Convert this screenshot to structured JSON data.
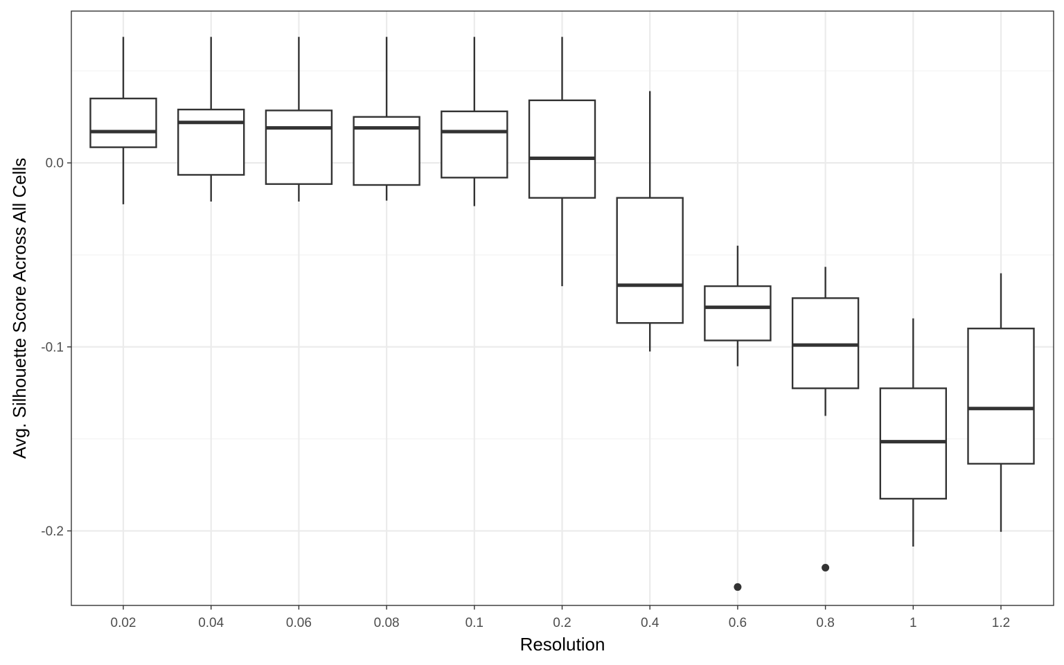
{
  "chart_data": {
    "type": "boxplot",
    "title": "",
    "xlabel": "Resolution",
    "ylabel": "Avg. Silhouette Score Across All Cells",
    "categories": [
      "0.02",
      "0.04",
      "0.06",
      "0.08",
      "0.1",
      "0.2",
      "0.4",
      "0.6",
      "0.8",
      "1",
      "1.2"
    ],
    "boxes": [
      {
        "category": "0.02",
        "whisker_low": -0.0225,
        "q1": 0.0085,
        "median": 0.017,
        "q3": 0.035,
        "whisker_high": 0.0685,
        "outliers": []
      },
      {
        "category": "0.04",
        "whisker_low": -0.021,
        "q1": -0.0065,
        "median": 0.022,
        "q3": 0.029,
        "whisker_high": 0.0685,
        "outliers": []
      },
      {
        "category": "0.06",
        "whisker_low": -0.021,
        "q1": -0.0115,
        "median": 0.019,
        "q3": 0.0285,
        "whisker_high": 0.0685,
        "outliers": []
      },
      {
        "category": "0.08",
        "whisker_low": -0.0205,
        "q1": -0.012,
        "median": 0.019,
        "q3": 0.025,
        "whisker_high": 0.0685,
        "outliers": []
      },
      {
        "category": "0.1",
        "whisker_low": -0.0235,
        "q1": -0.008,
        "median": 0.017,
        "q3": 0.028,
        "whisker_high": 0.0685,
        "outliers": []
      },
      {
        "category": "0.2",
        "whisker_low": -0.067,
        "q1": -0.019,
        "median": 0.0025,
        "q3": 0.034,
        "whisker_high": 0.0685,
        "outliers": []
      },
      {
        "category": "0.4",
        "whisker_low": -0.1025,
        "q1": -0.087,
        "median": -0.0665,
        "q3": -0.019,
        "whisker_high": 0.039,
        "outliers": []
      },
      {
        "category": "0.6",
        "whisker_low": -0.1105,
        "q1": -0.0965,
        "median": -0.0785,
        "q3": -0.067,
        "whisker_high": -0.045,
        "outliers": [
          -0.2305
        ]
      },
      {
        "category": "0.8",
        "whisker_low": -0.1375,
        "q1": -0.1225,
        "median": -0.099,
        "q3": -0.0735,
        "whisker_high": -0.0565,
        "outliers": [
          -0.22
        ]
      },
      {
        "category": "1",
        "whisker_low": -0.2085,
        "q1": -0.1825,
        "median": -0.1515,
        "q3": -0.1225,
        "whisker_high": -0.0845,
        "outliers": []
      },
      {
        "category": "1.2",
        "whisker_low": -0.2005,
        "q1": -0.1635,
        "median": -0.1335,
        "q3": -0.09,
        "whisker_high": -0.06,
        "outliers": []
      }
    ],
    "yticks": [
      {
        "value": 0.0,
        "label": "0.0"
      },
      {
        "value": -0.1,
        "label": "-0.1"
      },
      {
        "value": -0.2,
        "label": "-0.2"
      }
    ],
    "y_minor_gridlines": [
      0.05,
      -0.05,
      -0.15
    ],
    "ylim": [
      -0.2405,
      0.0825
    ],
    "grid": true,
    "legend": "none",
    "colors": {
      "box_stroke": "#333333",
      "box_fill": "#ffffff",
      "grid_major": "#ebebeb",
      "grid_minor": "#f2f2f2",
      "panel_border": "#333333",
      "tick_label": "#4d4d4d",
      "axis_title": "#000000"
    }
  }
}
